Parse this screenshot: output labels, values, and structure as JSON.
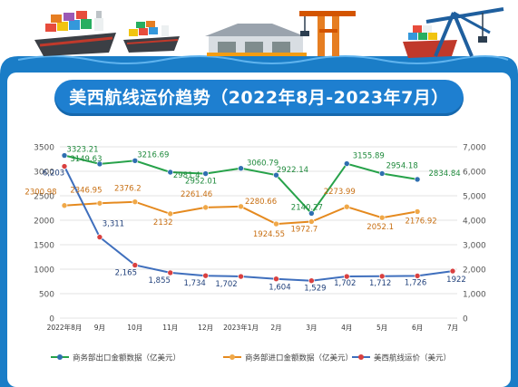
{
  "title": "美西航线运价趋势（2022年8月-2023年7月）",
  "legend": [
    {
      "label": "商务部出口金额数据（亿美元）",
      "color": "#27a24a"
    },
    {
      "label": "商务部进口金额数据（亿美元）",
      "color": "#e58a1f"
    },
    {
      "label": "美西航线运价（美元）",
      "color": "#3f6fbd"
    }
  ],
  "colors": {
    "frame": "#1a7dc7",
    "title_bar": "#1e7fd0",
    "export": "#27a24a",
    "import": "#e58a1f",
    "freight": "#3f6fbd",
    "freight_marker": "#d94040"
  },
  "chart_data": {
    "type": "line",
    "title": "美西航线运价趋势（2022年8月-2023年7月）",
    "categories": [
      "2022年8月",
      "9月",
      "10月",
      "11月",
      "12月",
      "2023年1月",
      "2月",
      "3月",
      "4月",
      "5月",
      "6月",
      "7月"
    ],
    "y_left": {
      "min": 0,
      "max": 3500,
      "ticks": [
        "0",
        "500",
        "1000",
        "1500",
        "2000",
        "2500",
        "3000",
        "3500"
      ]
    },
    "y_right": {
      "min": 0,
      "max": 7000,
      "ticks": [
        "0",
        "1,000",
        "2,000",
        "3,000",
        "4,000",
        "5,000",
        "6,000",
        "7,000"
      ]
    },
    "grid": true,
    "legend_position": "bottom",
    "series": [
      {
        "name": "商务部出口金额数据（亿美元）",
        "axis": "left",
        "values": [
          3323.21,
          3149.63,
          3216.69,
          2981.4,
          2952.01,
          3060.79,
          2922.14,
          2140.27,
          3155.89,
          2954.18,
          2834.84,
          null
        ],
        "labels": [
          "3323.21",
          "3149.63",
          "3216.69",
          "2981.4",
          "2952.01",
          "3060.79",
          "2922.14",
          "2140.27",
          "3155.89",
          "2954.18",
          "2834.84",
          ""
        ]
      },
      {
        "name": "商务部进口金额数据（亿美元）",
        "axis": "left",
        "values": [
          2300.98,
          2346.95,
          2376.2,
          2132,
          2261.46,
          2280.66,
          1924.55,
          1972.7,
          2273.99,
          2052.1,
          2176.92,
          null
        ],
        "labels": [
          "2300.98",
          "2346.95",
          "2376.2",
          "2132",
          "2261.46",
          "2280.66",
          "1924.55",
          "1972.7",
          "2273.99",
          "2052.1",
          "2176.92",
          ""
        ]
      },
      {
        "name": "美西航线运价（美元）",
        "axis": "right",
        "values": [
          6203,
          3311,
          2165,
          1855,
          1734,
          1702,
          1604,
          1529,
          1702,
          1712,
          1726,
          1922
        ],
        "labels": [
          "6,203",
          "3,311",
          "2,165",
          "1,855",
          "1,734",
          "1,702",
          "1,604",
          "1,529",
          "1,702",
          "1,712",
          "1,726",
          "1922"
        ]
      }
    ]
  }
}
